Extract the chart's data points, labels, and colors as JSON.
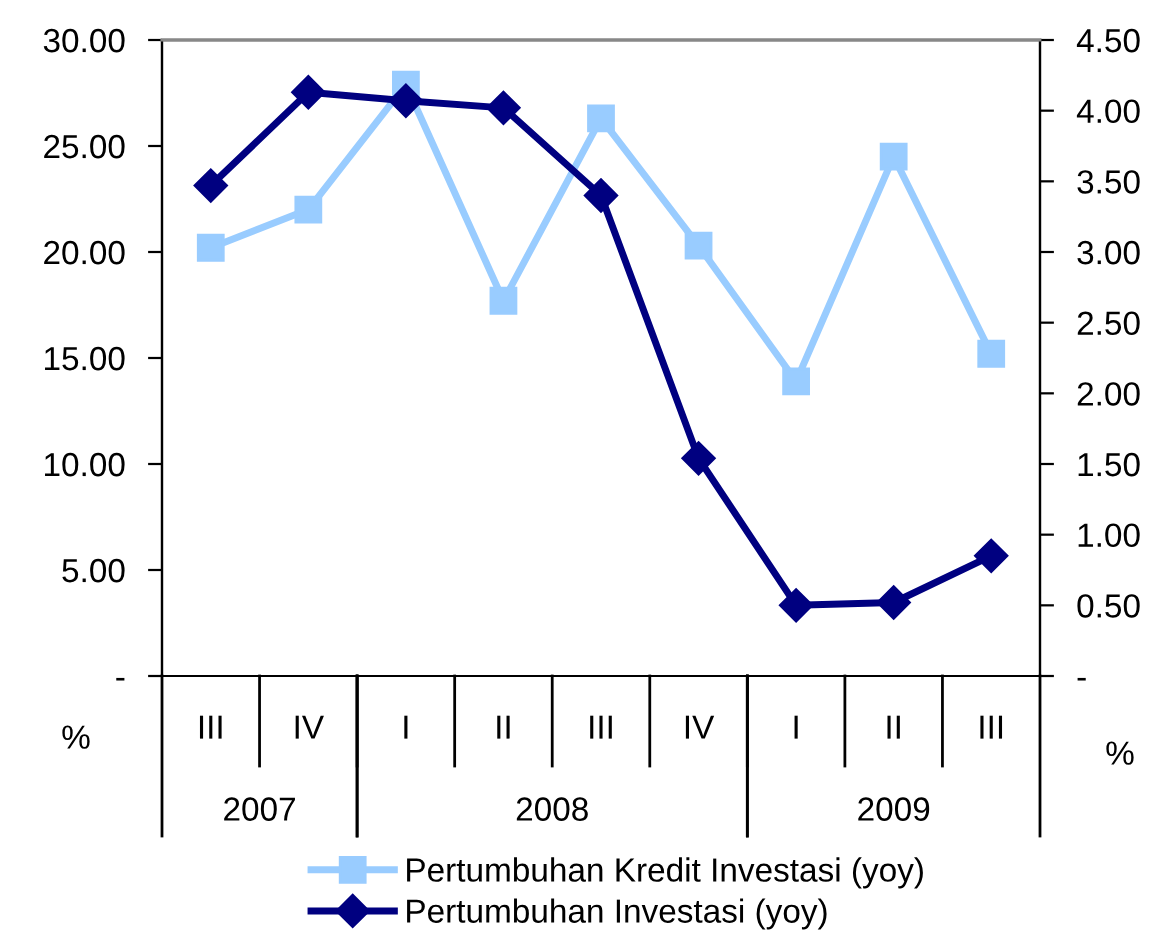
{
  "chart_data": {
    "type": "line",
    "categories": [
      "III",
      "IV",
      "I",
      "II",
      "III",
      "IV",
      "I",
      "II",
      "III"
    ],
    "series": [
      {
        "name": "Pertumbuhan Kredit Investasi (yoy)",
        "color": "#99ccff",
        "marker": "square",
        "values": [
          20.2,
          22.0,
          27.9,
          17.7,
          26.3,
          20.3,
          13.9,
          24.5,
          15.2
        ]
      },
      {
        "name": "Pertumbuhan Investasi (yoy)",
        "color": "#000080",
        "marker": "diamond",
        "axis": "y2",
        "values": [
          3.47,
          4.13,
          4.07,
          4.02,
          3.4,
          1.54,
          0.5,
          0.52,
          0.85
        ]
      }
    ],
    "ylabel": "%",
    "y2label": "%",
    "ylim": [
      0,
      30
    ],
    "yticks": [
      {
        "value": 0,
        "label": "-"
      },
      {
        "value": 5,
        "label": "5.00"
      },
      {
        "value": 10,
        "label": "10.00"
      },
      {
        "value": 15,
        "label": "15.00"
      },
      {
        "value": 20,
        "label": "20.00"
      },
      {
        "value": 25,
        "label": "25.00"
      },
      {
        "value": 30,
        "label": "30.00"
      }
    ],
    "y2lim": [
      0,
      4.5
    ],
    "y2ticks": [
      {
        "value": 0,
        "label": "-"
      },
      {
        "value": 0.5,
        "label": "0.50"
      },
      {
        "value": 1,
        "label": "1.00"
      },
      {
        "value": 1.5,
        "label": "1.50"
      },
      {
        "value": 2,
        "label": "2.00"
      },
      {
        "value": 2.5,
        "label": "2.50"
      },
      {
        "value": 3,
        "label": "3.00"
      },
      {
        "value": 3.5,
        "label": "3.50"
      },
      {
        "value": 4,
        "label": "4.00"
      },
      {
        "value": 4.5,
        "label": "4.50"
      }
    ],
    "annotations": [
      "2007",
      "2008",
      "2009"
    ],
    "grid": false,
    "legend": "bottom",
    "line_style": "solid"
  }
}
